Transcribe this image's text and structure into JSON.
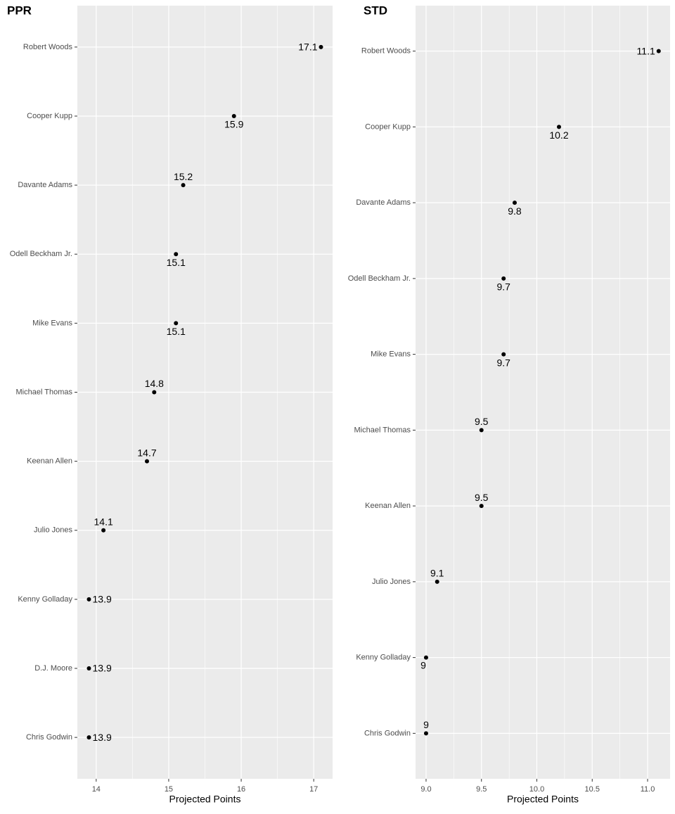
{
  "chart_data": [
    {
      "type": "dot",
      "title": "PPR",
      "x_label": "Projected Points",
      "categories": [
        "Robert Woods",
        "Cooper Kupp",
        "Davante Adams",
        "Odell Beckham Jr.",
        "Mike Evans",
        "Michael Thomas",
        "Keenan Allen",
        "Julio Jones",
        "Kenny Golladay",
        "D.J. Moore",
        "Chris Godwin"
      ],
      "values": [
        17.1,
        15.9,
        15.2,
        15.1,
        15.1,
        14.8,
        14.7,
        14.1,
        13.9,
        13.9,
        13.9
      ],
      "color": "#000000",
      "xlim": [
        13.74,
        17.26
      ],
      "xticks": [
        14,
        15,
        16,
        17
      ],
      "grid": true
    },
    {
      "type": "dot",
      "title": "STD",
      "x_label": "Projected Points",
      "categories": [
        "Robert Woods",
        "Cooper Kupp",
        "Davante Adams",
        "Odell Beckham Jr.",
        "Mike Evans",
        "Michael Thomas",
        "Keenan Allen",
        "Julio Jones",
        "Kenny Golladay",
        "Chris Godwin"
      ],
      "values": [
        11.1,
        10.2,
        9.8,
        9.7,
        9.7,
        9.5,
        9.5,
        9.1,
        9,
        9
      ],
      "color": "#000000",
      "xlim": [
        8.905,
        11.203
      ],
      "xticks": [
        {
          "value": 9,
          "label": "9.0"
        },
        {
          "value": 9.5,
          "label": "9.5"
        },
        {
          "value": 10,
          "label": "10.0"
        },
        {
          "value": 10.5,
          "label": "10.5"
        },
        {
          "value": 11,
          "label": "11.0"
        }
      ],
      "grid": true
    }
  ]
}
